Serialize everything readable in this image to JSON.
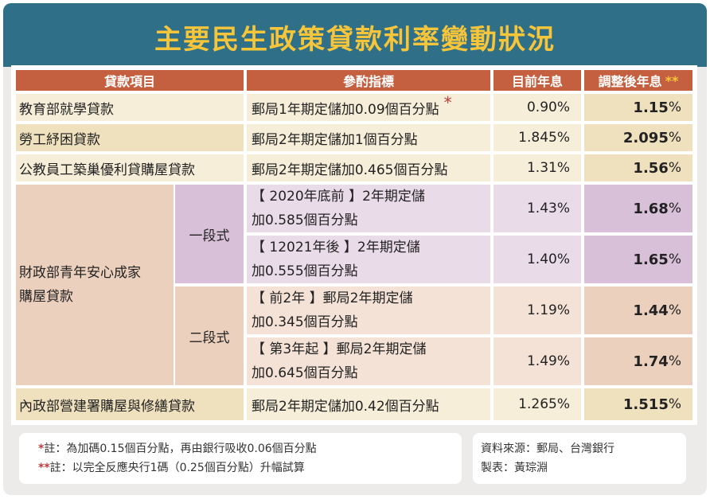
{
  "title": "主要民生政策貸款利率變動狀況",
  "headers": {
    "item": "貸款項目",
    "ref": "參酌指標",
    "current": "目前年息",
    "adjusted": "調整後年息",
    "adjusted_mark": "**"
  },
  "rows": [
    {
      "name": "教育部就學貸款",
      "ref": "郵局1年期定儲加0.09個百分點",
      "ref_mark": "*",
      "current": "0.90%",
      "adjusted": "1.15",
      "adjusted_unit": "%"
    },
    {
      "name": "勞工紓困貸款",
      "ref": "郵局2年期定儲加1個百分點",
      "current": "1.845%",
      "adjusted": "2.095",
      "adjusted_unit": "%"
    },
    {
      "name": "公教員工築巢優利貸購屋貸款",
      "ref": "郵局2年期定儲加0.465個百分點",
      "current": "1.31%",
      "adjusted": "1.56",
      "adjusted_unit": "%"
    }
  ],
  "mof": {
    "name_line1": "財政部青年安心成家",
    "name_line2": "購屋貸款",
    "tier1": "一段式",
    "tier2": "二段式",
    "sub": [
      {
        "ref_line1": "【 2020年底前 】2年期定儲",
        "ref_line2": "加0.585個百分點",
        "current": "1.43%",
        "adjusted": "1.68",
        "adjusted_unit": "%"
      },
      {
        "ref_line1": "【 12021年後 】2年期定儲",
        "ref_line2": "加0.555個百分點",
        "current": "1.40%",
        "adjusted": "1.65",
        "adjusted_unit": "%"
      },
      {
        "ref_line1": "【 前2年 】郵局2年期定儲",
        "ref_line2": "加0.345個百分點",
        "current": "1.19%",
        "adjusted": "1.44",
        "adjusted_unit": "%"
      },
      {
        "ref_line1": "【 第3年起 】郵局2年期定儲",
        "ref_line2": "加0.645個百分點",
        "current": "1.49%",
        "adjusted": "1.74",
        "adjusted_unit": "%"
      }
    ]
  },
  "last_row": {
    "name": "內政部營建署購屋與修繕貸款",
    "ref": "郵局2年期定儲加0.42個百分點",
    "current": "1.265%",
    "adjusted": "1.515",
    "adjusted_unit": "%"
  },
  "notes": {
    "note1_mark": "*",
    "note1": "註：為加碼0.15個百分點，再由銀行吸收0.06個百分點",
    "note2_mark": "**",
    "note2": "註：以完全反應央行1碼（0.25個百分點）升幅試算",
    "source": "資料來源：郵局、台灣銀行",
    "maker": "製表：黃琮淵"
  },
  "colors": {
    "title_band": "#2f6f88",
    "title_text": "#f6c53a",
    "header": "#c4603f",
    "row_cream": "#f6eed9",
    "row_cream_dark": "#efe0be",
    "row_purple": "#e9dbe8",
    "row_purple_dark": "#d8c0d8",
    "row_peach": "#f4e2d6",
    "row_peach_dark": "#ecd0be",
    "star": "#c03a3a"
  }
}
